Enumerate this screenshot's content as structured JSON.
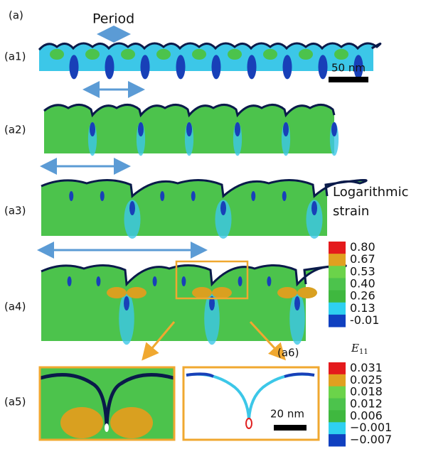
{
  "figure_label": "(a)",
  "period_label": "Period",
  "panels": [
    {
      "label": "(a1)"
    },
    {
      "label": "(a2)"
    },
    {
      "label": "(a3)"
    },
    {
      "label": "(a4)"
    },
    {
      "label": "(a5)"
    },
    {
      "label": "(a6)"
    }
  ],
  "scale_bars": [
    "50 nm",
    "20 nm"
  ],
  "colorbar_1": {
    "title_lines": [
      "Logarithmic",
      "strain"
    ],
    "ticks": [
      "0.80",
      "0.67",
      "0.53",
      "0.40",
      "0.26",
      "0.13",
      "-0.01"
    ]
  },
  "colorbar_2": {
    "symbol": "E",
    "subscript": "11",
    "ticks": [
      "0.031",
      "0.025",
      "0.018",
      "0.012",
      "0.006",
      "−0.001",
      "−0.007"
    ]
  }
}
